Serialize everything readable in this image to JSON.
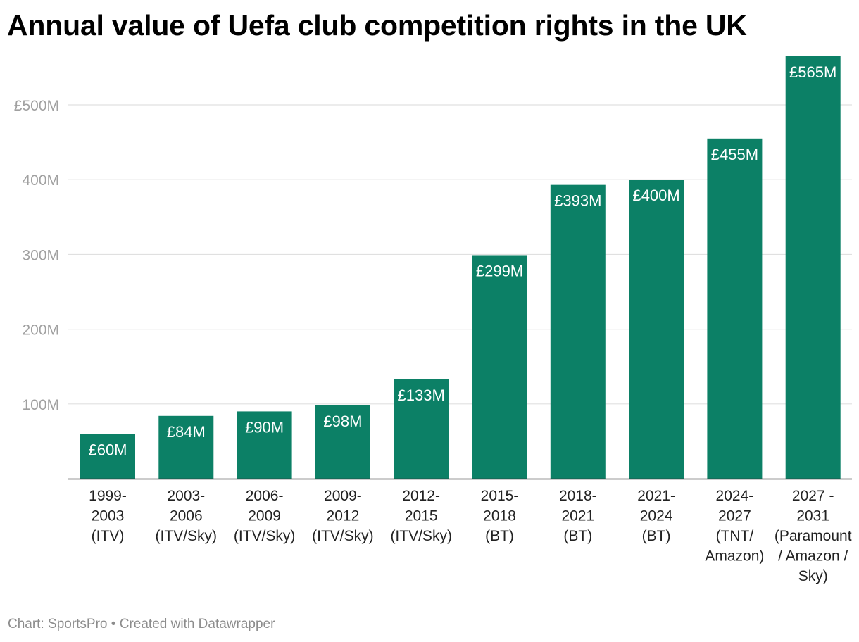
{
  "title": "Annual value of Uefa club competition rights in the UK",
  "footer": {
    "source": "Chart: SportsPro",
    "separator": " • ",
    "credit": "Created with Datawrapper"
  },
  "colors": {
    "bar": "#0c8066",
    "bar_label": "#ffffff",
    "grid": "#e0e0e0",
    "axis": "#333333",
    "tick_label": "#a0a0a0",
    "category_label": "#222222"
  },
  "chart_data": {
    "type": "bar",
    "title": "Annual value of Uefa club competition rights in the UK",
    "xlabel": "",
    "ylabel": "",
    "ylim": [
      0,
      565
    ],
    "unit": "£M",
    "grid": true,
    "yticks": [
      {
        "value": 100,
        "label": "100M"
      },
      {
        "value": 200,
        "label": "200M"
      },
      {
        "value": 300,
        "label": "300M"
      },
      {
        "value": 400,
        "label": "400M"
      },
      {
        "value": 500,
        "label": "£500M"
      }
    ],
    "categories": [
      [
        "1999-",
        "2003",
        "(ITV)"
      ],
      [
        "2003-",
        "2006",
        "(ITV/Sky)"
      ],
      [
        "2006-",
        "2009",
        "(ITV/Sky)"
      ],
      [
        "2009-",
        "2012",
        "(ITV/Sky)"
      ],
      [
        "2012-",
        "2015",
        "(ITV/Sky)"
      ],
      [
        "2015-",
        "2018",
        "(BT)"
      ],
      [
        "2018-",
        "2021",
        "(BT)"
      ],
      [
        "2021-",
        "2024",
        "(BT)"
      ],
      [
        "2024-",
        "2027",
        "(TNT/",
        "Amazon)"
      ],
      [
        "2027 -",
        "2031",
        "(Paramount",
        "/ Amazon /",
        "Sky)"
      ]
    ],
    "values": [
      60,
      84,
      90,
      98,
      133,
      299,
      393,
      400,
      455,
      565
    ],
    "value_labels": [
      "£60M",
      "£84M",
      "£90M",
      "£98M",
      "£133M",
      "£299M",
      "£393M",
      "£400M",
      "£455M",
      "£565M"
    ]
  }
}
